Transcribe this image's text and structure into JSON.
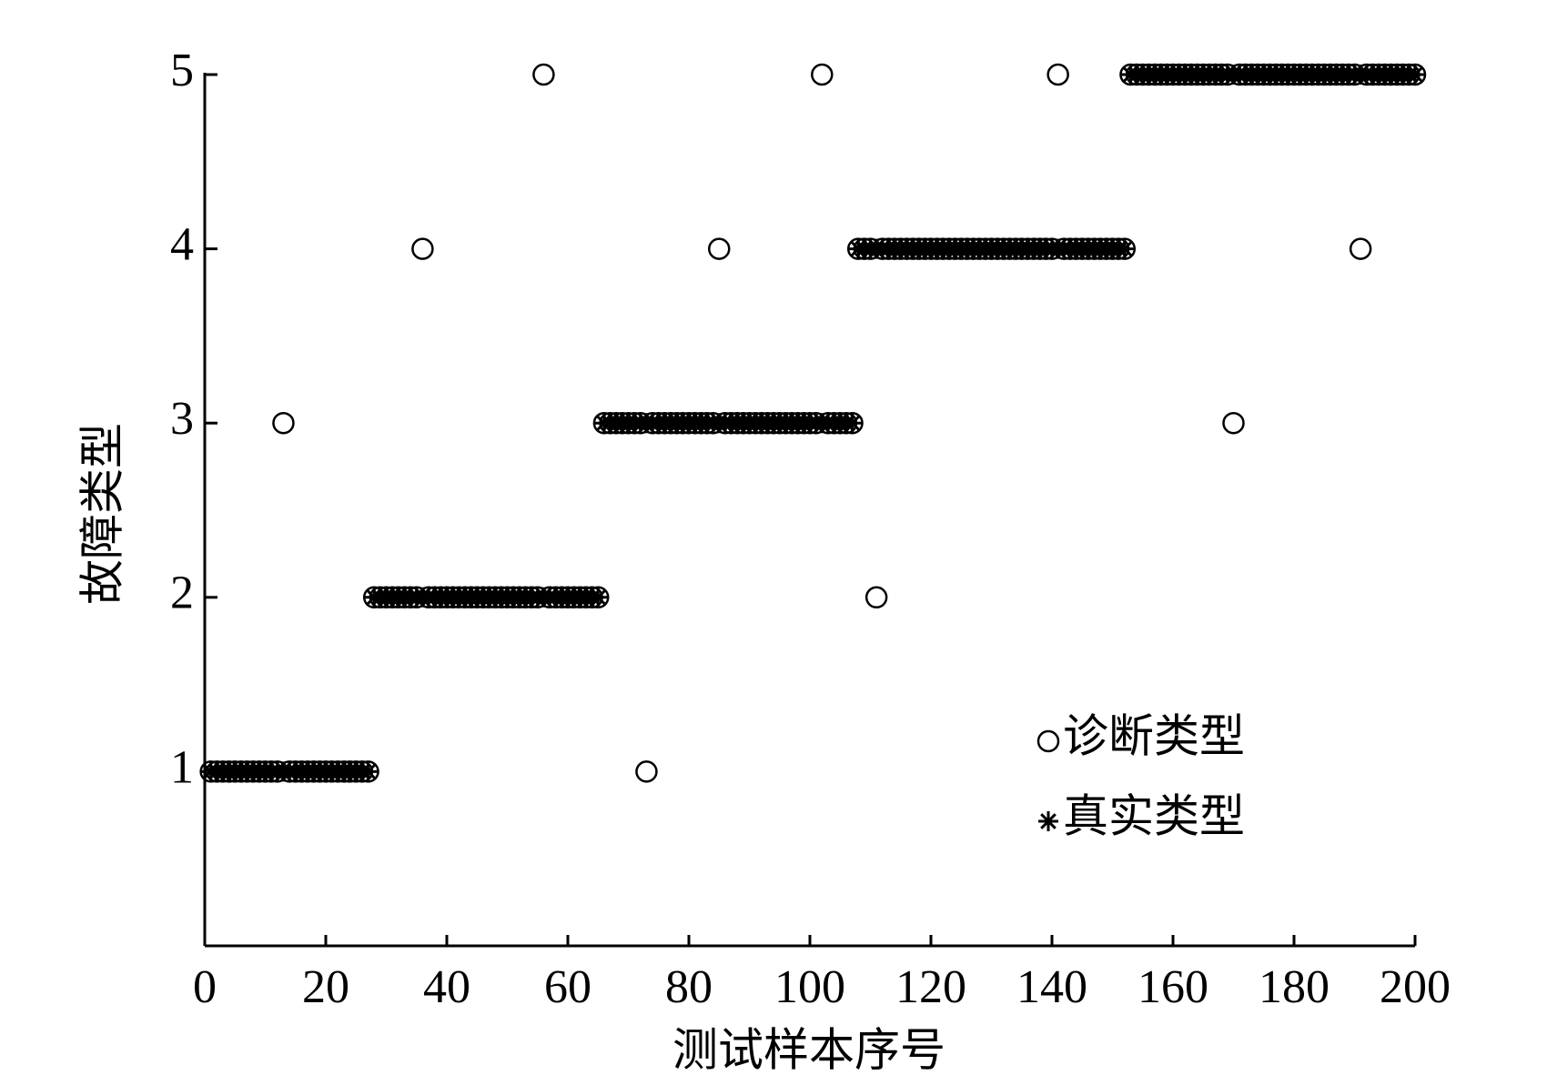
{
  "chart_data": {
    "type": "scatter",
    "xlabel": "测试样本序号",
    "ylabel": "故障类型",
    "x": [
      1,
      2,
      3,
      4,
      5,
      6,
      7,
      8,
      9,
      10,
      11,
      12,
      13,
      14,
      15,
      16,
      17,
      18,
      19,
      20,
      21,
      22,
      23,
      24,
      25,
      26,
      27,
      28,
      29,
      30,
      31,
      32,
      33,
      34,
      35,
      36,
      37,
      38,
      39,
      40,
      41,
      42,
      43,
      44,
      45,
      46,
      47,
      48,
      49,
      50,
      51,
      52,
      53,
      54,
      55,
      56,
      57,
      58,
      59,
      60,
      61,
      62,
      63,
      64,
      65,
      66,
      67,
      68,
      69,
      70,
      71,
      72,
      73,
      74,
      75,
      76,
      77,
      78,
      79,
      80,
      81,
      82,
      83,
      84,
      85,
      86,
      87,
      88,
      89,
      90,
      91,
      92,
      93,
      94,
      95,
      96,
      97,
      98,
      99,
      100,
      101,
      102,
      103,
      104,
      105,
      106,
      107,
      108,
      109,
      110,
      111,
      112,
      113,
      114,
      115,
      116,
      117,
      118,
      119,
      120,
      121,
      122,
      123,
      124,
      125,
      126,
      127,
      128,
      129,
      130,
      131,
      132,
      133,
      134,
      135,
      136,
      137,
      138,
      139,
      140,
      141,
      142,
      143,
      144,
      145,
      146,
      147,
      148,
      149,
      150,
      151,
      152,
      153,
      154,
      155,
      156,
      157,
      158,
      159,
      160,
      161,
      162,
      163,
      164,
      165,
      166,
      167,
      168,
      169,
      170,
      171,
      172,
      173,
      174,
      175,
      176,
      177,
      178,
      179,
      180,
      181,
      182,
      183,
      184,
      185,
      186,
      187,
      188,
      189,
      190,
      191,
      192,
      193,
      194,
      195,
      196,
      197,
      198,
      199,
      200
    ],
    "series": [
      {
        "name": "真实类型",
        "marker": "*",
        "color": "#000000",
        "values": [
          1,
          1,
          1,
          1,
          1,
          1,
          1,
          1,
          1,
          1,
          1,
          1,
          1,
          1,
          1,
          1,
          1,
          1,
          1,
          1,
          1,
          1,
          1,
          1,
          1,
          1,
          1,
          2,
          2,
          2,
          2,
          2,
          2,
          2,
          2,
          2,
          2,
          2,
          2,
          2,
          2,
          2,
          2,
          2,
          2,
          2,
          2,
          2,
          2,
          2,
          2,
          2,
          2,
          2,
          2,
          2,
          2,
          2,
          2,
          2,
          2,
          2,
          2,
          2,
          2,
          3,
          3,
          3,
          3,
          3,
          3,
          3,
          3,
          3,
          3,
          3,
          3,
          3,
          3,
          3,
          3,
          3,
          3,
          3,
          3,
          3,
          3,
          3,
          3,
          3,
          3,
          3,
          3,
          3,
          3,
          3,
          3,
          3,
          3,
          3,
          3,
          3,
          3,
          3,
          3,
          3,
          3,
          4,
          4,
          4,
          4,
          4,
          4,
          4,
          4,
          4,
          4,
          4,
          4,
          4,
          4,
          4,
          4,
          4,
          4,
          4,
          4,
          4,
          4,
          4,
          4,
          4,
          4,
          4,
          4,
          4,
          4,
          4,
          4,
          4,
          4,
          4,
          4,
          4,
          4,
          4,
          4,
          4,
          4,
          4,
          4,
          4,
          5,
          5,
          5,
          5,
          5,
          5,
          5,
          5,
          5,
          5,
          5,
          5,
          5,
          5,
          5,
          5,
          5,
          5,
          5,
          5,
          5,
          5,
          5,
          5,
          5,
          5,
          5,
          5,
          5,
          5,
          5,
          5,
          5,
          5,
          5,
          5,
          5,
          5,
          5,
          5,
          5,
          5,
          5,
          5,
          5,
          5,
          5,
          5
        ]
      },
      {
        "name": "诊断类型",
        "marker": "o",
        "color": "#000000",
        "values": [
          1,
          1,
          1,
          1,
          1,
          1,
          1,
          1,
          1,
          1,
          1,
          1,
          3,
          1,
          1,
          1,
          1,
          1,
          1,
          1,
          1,
          1,
          1,
          1,
          1,
          1,
          1,
          2,
          2,
          2,
          2,
          2,
          2,
          2,
          2,
          4,
          2,
          2,
          2,
          2,
          2,
          2,
          2,
          2,
          2,
          2,
          2,
          2,
          2,
          2,
          2,
          2,
          2,
          2,
          2,
          5,
          2,
          2,
          2,
          2,
          2,
          2,
          2,
          2,
          2,
          3,
          3,
          3,
          3,
          3,
          3,
          3,
          1,
          3,
          3,
          3,
          3,
          3,
          3,
          3,
          3,
          3,
          3,
          3,
          4,
          3,
          3,
          3,
          3,
          3,
          3,
          3,
          3,
          3,
          3,
          3,
          3,
          3,
          3,
          3,
          3,
          5,
          3,
          3,
          3,
          3,
          3,
          4,
          4,
          4,
          2,
          4,
          4,
          4,
          4,
          4,
          4,
          4,
          4,
          4,
          4,
          4,
          4,
          4,
          4,
          4,
          4,
          4,
          4,
          4,
          4,
          4,
          4,
          4,
          4,
          4,
          4,
          4,
          4,
          4,
          5,
          4,
          4,
          4,
          4,
          4,
          4,
          4,
          4,
          4,
          4,
          4,
          5,
          5,
          5,
          5,
          5,
          5,
          5,
          5,
          5,
          5,
          5,
          5,
          5,
          5,
          5,
          5,
          5,
          3,
          5,
          5,
          5,
          5,
          5,
          5,
          5,
          5,
          5,
          5,
          5,
          5,
          5,
          5,
          5,
          5,
          5,
          5,
          5,
          5,
          4,
          5,
          5,
          5,
          5,
          5,
          5,
          5,
          5,
          5
        ]
      }
    ],
    "xlim": [
      0,
      200
    ],
    "xticks": [
      0,
      20,
      40,
      60,
      80,
      100,
      120,
      140,
      160,
      180,
      200
    ],
    "ylim": [
      0,
      5
    ],
    "yticks": [
      1,
      2,
      3,
      4,
      5
    ],
    "legend": "lower right"
  }
}
